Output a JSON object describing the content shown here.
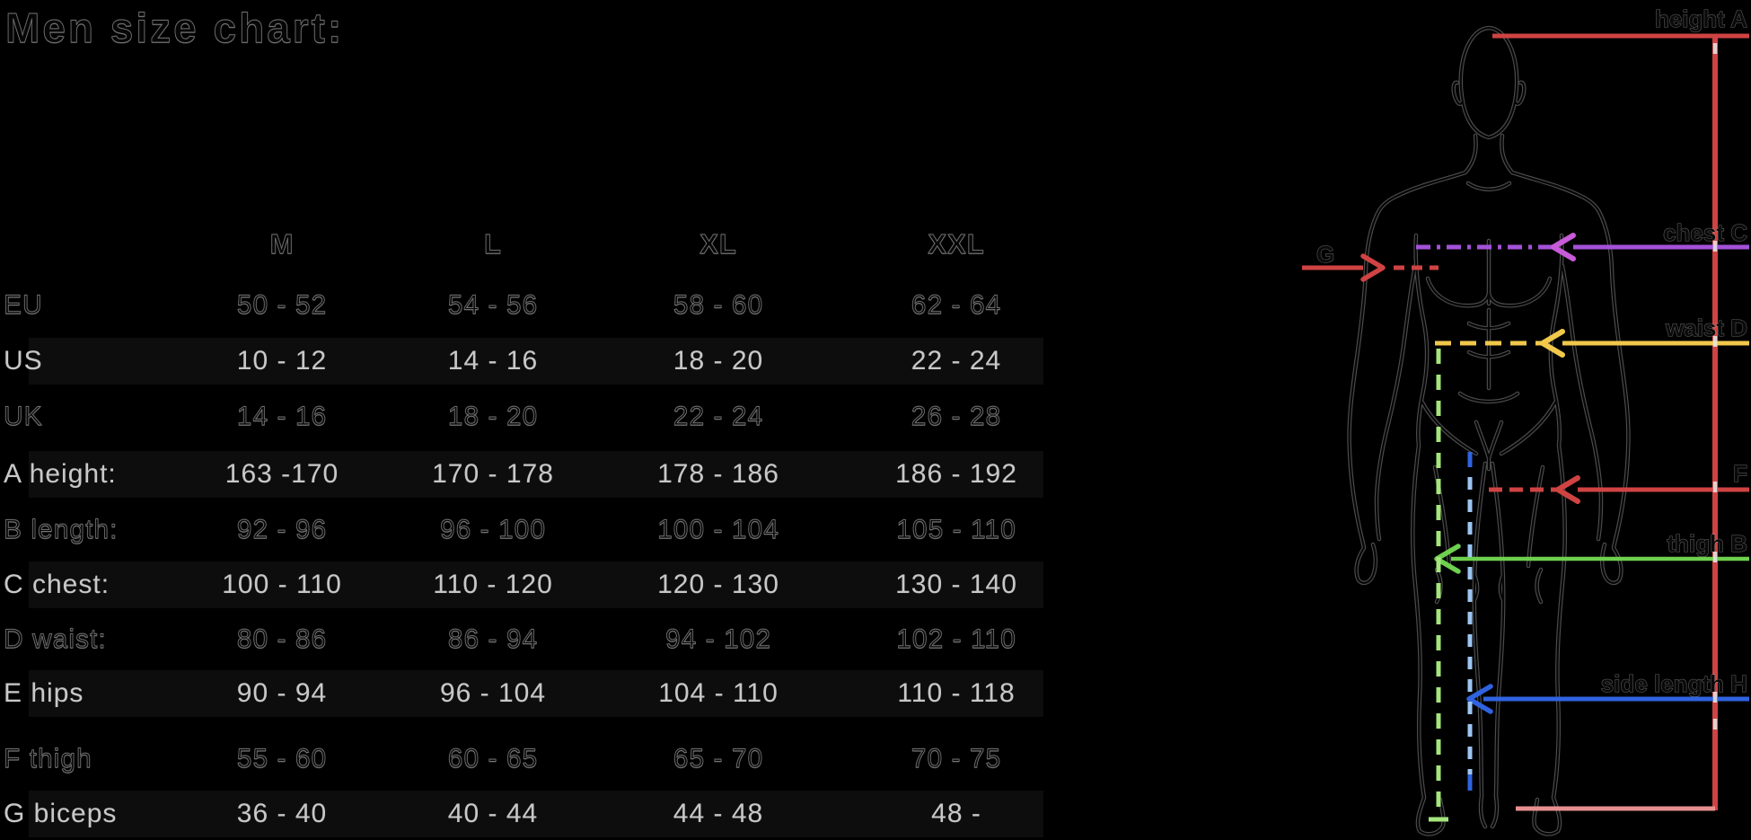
{
  "title": "Men size chart:",
  "table": {
    "columns": [
      "M",
      "L",
      "XL",
      "XXL"
    ],
    "rows": [
      {
        "label": "EU",
        "style": "ghost",
        "values": [
          "50 - 52",
          "54 - 56",
          "58 - 60",
          "62 - 64"
        ]
      },
      {
        "label": "US",
        "style": "light",
        "values": [
          "10 - 12",
          "14 - 16",
          "18 - 20",
          "22 - 24"
        ]
      },
      {
        "label": "UK",
        "style": "ghost",
        "values": [
          "14 - 16",
          "18 - 20",
          "22 - 24",
          "26 - 28"
        ]
      },
      {
        "label": "A height:",
        "style": "light",
        "values": [
          "163 -170",
          "170 - 178",
          "178 - 186",
          "186 - 192"
        ]
      },
      {
        "label": "B length:",
        "style": "ghost",
        "values": [
          "92 - 96",
          "96 - 100",
          "100 - 104",
          "105 - 110"
        ]
      },
      {
        "label": "C chest:",
        "style": "light",
        "values": [
          "100 - 110",
          "110 - 120",
          "120 - 130",
          "130 - 140"
        ]
      },
      {
        "label": "D waist:",
        "style": "ghost",
        "values": [
          "80 - 86",
          "86 - 94",
          "94 - 102",
          "102 - 110"
        ]
      },
      {
        "label": "E hips",
        "style": "light",
        "values": [
          "90 - 94",
          "96 - 104",
          "104 - 110",
          "110 - 118"
        ]
      },
      {
        "label": "F thigh",
        "style": "ghost",
        "values": [
          "55 - 60",
          "60 - 65",
          "65 - 70",
          "70 - 75"
        ]
      },
      {
        "label": "G biceps",
        "style": "light",
        "values": [
          "36 - 40",
          "40 - 44",
          "44 - 48",
          "48 -"
        ]
      }
    ]
  },
  "diagram": {
    "labels": {
      "height": "height A",
      "chest": "chest C",
      "waist": "waist D",
      "crotch": "F",
      "thigh": "thigh B",
      "side_length": "side length H",
      "biceps": "G"
    },
    "colors": {
      "red": "#d04343",
      "salmon": "#e89090",
      "purple": "#a352d8",
      "magenta": "#c75bd8",
      "yellow": "#f2c84b",
      "green": "#6ed04f",
      "light_green": "#a5e57d",
      "blue": "#2f63e0",
      "light_blue": "#9cc6f2",
      "tick": "#e8e8e8"
    }
  },
  "chart_data": {
    "type": "table",
    "title": "Men size chart",
    "columns": [
      "M",
      "L",
      "XL",
      "XXL"
    ],
    "rows": [
      {
        "label": "EU",
        "values": [
          "50 - 52",
          "54 - 56",
          "58 - 60",
          "62 - 64"
        ]
      },
      {
        "label": "US",
        "values": [
          "10 - 12",
          "14 - 16",
          "18 - 20",
          "22 - 24"
        ]
      },
      {
        "label": "UK",
        "values": [
          "14 - 16",
          "18 - 20",
          "22 - 24",
          "26 - 28"
        ]
      },
      {
        "label": "A height",
        "values": [
          "163 -170",
          "170 - 178",
          "178 - 186",
          "186 - 192"
        ]
      },
      {
        "label": "B length",
        "values": [
          "92 - 96",
          "96 - 100",
          "100 - 104",
          "105 - 110"
        ]
      },
      {
        "label": "C chest",
        "values": [
          "100 - 110",
          "110 - 120",
          "120 - 130",
          "130 - 140"
        ]
      },
      {
        "label": "D waist",
        "values": [
          "80 - 86",
          "86 - 94",
          "94 - 102",
          "102 - 110"
        ]
      },
      {
        "label": "E hips",
        "values": [
          "90 - 94",
          "96 - 104",
          "104 - 110",
          "110 - 118"
        ]
      },
      {
        "label": "F thigh",
        "values": [
          "55 - 60",
          "60 - 65",
          "65 - 70",
          "70 - 75"
        ]
      },
      {
        "label": "G biceps",
        "values": [
          "36 - 40",
          "40 - 44",
          "44 - 48",
          "48 -"
        ]
      }
    ]
  }
}
